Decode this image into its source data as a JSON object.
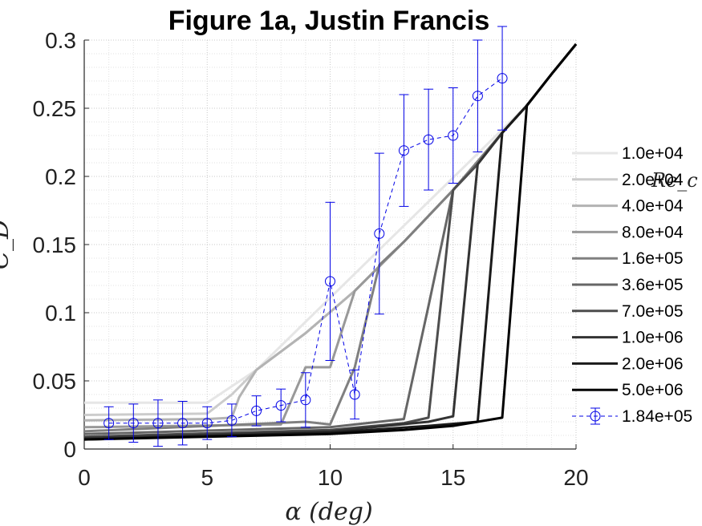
{
  "chart_data": {
    "type": "line",
    "title": "Figure 1a, Justin Francis",
    "xlabel": "α (deg)",
    "ylabel": "C_D",
    "xlim": [
      0,
      20
    ],
    "ylim": [
      0,
      0.3
    ],
    "xticks": [
      "0",
      "5",
      "10",
      "15",
      "20"
    ],
    "yticks": [
      "0",
      "0.05",
      "0.1",
      "0.15",
      "0.2",
      "0.25",
      "0.3"
    ],
    "grid": true,
    "legend_title": "Re_c",
    "legend_position": "right",
    "series": [
      {
        "name": "1.0e+04",
        "color": "#e6e6e6",
        "x": [
          0,
          5,
          6,
          7,
          18,
          19,
          20
        ],
        "y": [
          0.034,
          0.034,
          0.046,
          0.058,
          0.252,
          0.275,
          0.297
        ]
      },
      {
        "name": "2.0e+04",
        "color": "#cccccc",
        "x": [
          0,
          5,
          6,
          7,
          9,
          11,
          13,
          15,
          17,
          18,
          19,
          20
        ],
        "y": [
          0.025,
          0.026,
          0.04,
          0.058,
          0.085,
          0.116,
          0.152,
          0.19,
          0.232,
          0.252,
          0.275,
          0.297
        ]
      },
      {
        "name": "4.0e+04",
        "color": "#b3b3b3",
        "x": [
          0,
          5,
          6,
          6.3,
          7,
          9,
          11,
          13,
          15,
          17,
          18,
          19,
          20
        ],
        "y": [
          0.021,
          0.022,
          0.023,
          0.038,
          0.058,
          0.085,
          0.116,
          0.152,
          0.19,
          0.232,
          0.252,
          0.275,
          0.297
        ]
      },
      {
        "name": "8.0e+04",
        "color": "#999999",
        "x": [
          0,
          8,
          9,
          10,
          11,
          13,
          15,
          17,
          18,
          19,
          20
        ],
        "y": [
          0.016,
          0.018,
          0.06,
          0.06,
          0.116,
          0.152,
          0.19,
          0.232,
          0.252,
          0.275,
          0.297
        ]
      },
      {
        "name": "1.6e+05",
        "color": "#808080",
        "x": [
          0,
          9,
          10,
          11,
          12,
          13,
          15,
          17,
          18,
          19,
          20
        ],
        "y": [
          0.013,
          0.02,
          0.018,
          0.06,
          0.135,
          0.152,
          0.19,
          0.232,
          0.252,
          0.275,
          0.297
        ]
      },
      {
        "name": "3.6e+05",
        "color": "#666666",
        "x": [
          0,
          10,
          12,
          13,
          14,
          15,
          16,
          17,
          18,
          19,
          20
        ],
        "y": [
          0.011,
          0.016,
          0.02,
          0.022,
          0.105,
          0.19,
          0.209,
          0.232,
          0.252,
          0.275,
          0.297
        ]
      },
      {
        "name": "7.0e+05",
        "color": "#4d4d4d",
        "x": [
          0,
          10,
          13,
          14,
          15,
          16,
          17,
          18,
          19,
          20
        ],
        "y": [
          0.009,
          0.014,
          0.019,
          0.023,
          0.19,
          0.209,
          0.232,
          0.252,
          0.275,
          0.297
        ]
      },
      {
        "name": "1.0e+06",
        "color": "#333333",
        "x": [
          0,
          10,
          14,
          15,
          16,
          17,
          18,
          19,
          20
        ],
        "y": [
          0.008,
          0.013,
          0.02,
          0.024,
          0.209,
          0.232,
          0.252,
          0.275,
          0.297
        ]
      },
      {
        "name": "2.0e+06",
        "color": "#1a1a1a",
        "x": [
          0,
          10,
          14,
          16,
          17,
          18,
          19,
          20
        ],
        "y": [
          0.007,
          0.012,
          0.017,
          0.02,
          0.232,
          0.252,
          0.275,
          0.297
        ]
      },
      {
        "name": "5.0e+06",
        "color": "#000000",
        "x": [
          0,
          10,
          13,
          15,
          17,
          18,
          19,
          20
        ],
        "y": [
          0.007,
          0.011,
          0.014,
          0.017,
          0.023,
          0.252,
          0.275,
          0.297
        ]
      }
    ],
    "experimental": {
      "name": "1.84e+05",
      "color": "#0000e6",
      "x": [
        1,
        2,
        3,
        4,
        5,
        6,
        7,
        8,
        9,
        10,
        11,
        12,
        13,
        14,
        15,
        16,
        17
      ],
      "y": [
        0.019,
        0.019,
        0.019,
        0.019,
        0.019,
        0.021,
        0.028,
        0.032,
        0.036,
        0.123,
        0.04,
        0.158,
        0.219,
        0.227,
        0.23,
        0.259,
        0.272
      ],
      "err": [
        0.012,
        0.014,
        0.017,
        0.016,
        0.012,
        0.012,
        0.011,
        0.012,
        0.02,
        0.058,
        0.018,
        0.059,
        0.041,
        0.037,
        0.035,
        0.041,
        0.038
      ]
    }
  }
}
